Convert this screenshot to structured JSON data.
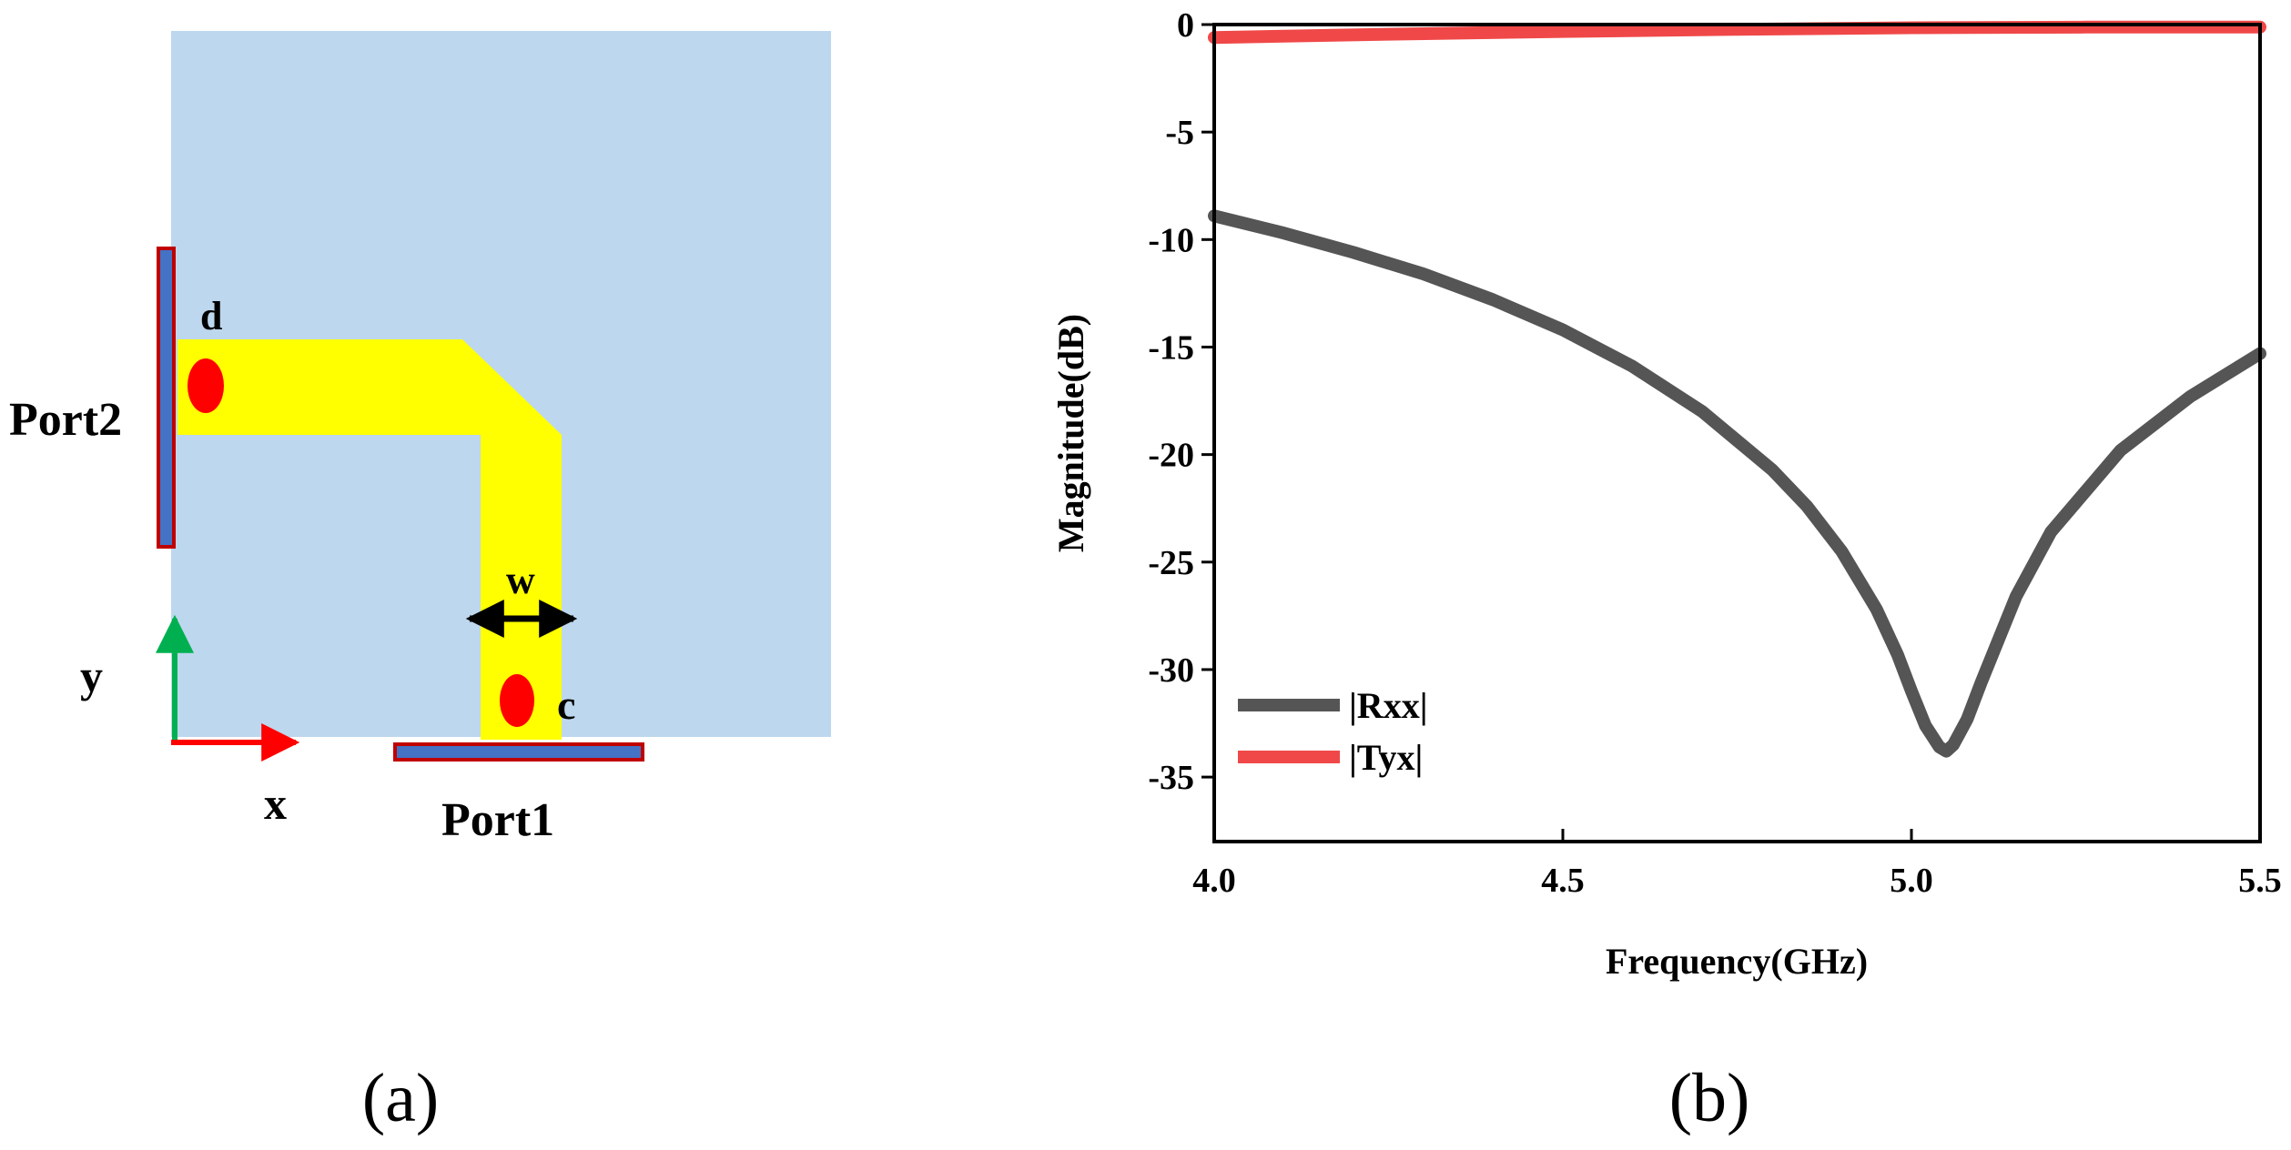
{
  "panel_a": {
    "caption": "(a)",
    "port1_label": "Port1",
    "port2_label": "Port2",
    "point_c_label": "c",
    "point_d_label": "d",
    "width_label": "w",
    "x_axis_label": "x",
    "y_axis_label": "y",
    "colors": {
      "substrate": "#bdd7ee",
      "strip": "#ffff00",
      "via": "#ff0000",
      "port_fill": "#4472c4",
      "port_border": "#c00000",
      "x_arrow": "#ff0000",
      "y_arrow": "#00b050"
    }
  },
  "panel_b": {
    "caption": "(b)"
  },
  "chart_data": {
    "type": "line",
    "title": "",
    "xlabel": "Frequency(GHz)",
    "ylabel": "Magnitude(dB)",
    "xlim": [
      4.0,
      5.5
    ],
    "ylim": [
      -38,
      0
    ],
    "xticks": [
      4.0,
      4.5,
      5.0,
      5.5
    ],
    "xtick_labels": [
      "4.0",
      "4.5",
      "5.0",
      "5.5"
    ],
    "yticks": [
      0,
      -5,
      -10,
      -15,
      -20,
      -25,
      -30,
      -35
    ],
    "ytick_labels": [
      "0",
      "-5",
      "-10",
      "-15",
      "-20",
      "-25",
      "-30",
      "-35"
    ],
    "grid": false,
    "legend_position": "bottom-left",
    "series": [
      {
        "name": "|Rxx|",
        "color": "#555555",
        "x": [
          4.0,
          4.1,
          4.2,
          4.3,
          4.4,
          4.5,
          4.6,
          4.7,
          4.8,
          4.85,
          4.9,
          4.95,
          4.98,
          5.0,
          5.02,
          5.04,
          5.05,
          5.06,
          5.08,
          5.1,
          5.15,
          5.2,
          5.3,
          5.4,
          5.5
        ],
        "y": [
          -8.9,
          -9.7,
          -10.6,
          -11.6,
          -12.8,
          -14.2,
          -15.9,
          -18.0,
          -20.7,
          -22.4,
          -24.5,
          -27.2,
          -29.3,
          -31.0,
          -32.6,
          -33.6,
          -33.8,
          -33.5,
          -32.3,
          -30.6,
          -26.6,
          -23.6,
          -19.8,
          -17.3,
          -15.3
        ]
      },
      {
        "name": "|Tyx|",
        "color": "#f04848",
        "x": [
          4.0,
          4.25,
          4.5,
          4.75,
          5.0,
          5.25,
          5.5
        ],
        "y": [
          -0.6,
          -0.45,
          -0.32,
          -0.22,
          -0.15,
          -0.12,
          -0.12
        ]
      }
    ]
  }
}
